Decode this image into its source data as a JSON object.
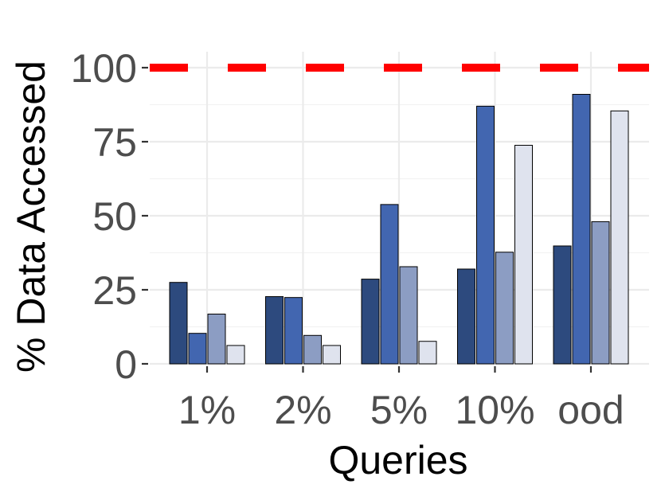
{
  "chart_data": {
    "type": "bar",
    "title": "",
    "xlabel": "Queries",
    "ylabel": "% Data Accessed",
    "categories": [
      "1%",
      "2%",
      "5%",
      "10%",
      "ood"
    ],
    "series": [
      {
        "values": [
          27.5,
          22.7,
          28.6,
          32.0,
          39.8
        ],
        "color": "#2d4a7e"
      },
      {
        "values": [
          10.3,
          22.4,
          53.8,
          87.0,
          91.0
        ],
        "color": "#4266b0"
      },
      {
        "values": [
          16.8,
          9.6,
          32.8,
          37.7,
          48.0
        ],
        "color": "#8c9dc3"
      },
      {
        "values": [
          6.2,
          6.2,
          7.6,
          73.8,
          85.4
        ],
        "color": "#dfe3ee"
      }
    ],
    "reference_line": {
      "y": 100,
      "color": "#ff0000",
      "style": "dashed"
    },
    "ylim": [
      0,
      100
    ],
    "yticks": [
      "0",
      "25",
      "50",
      "75",
      "100"
    ],
    "grid": true,
    "legend": "none"
  }
}
